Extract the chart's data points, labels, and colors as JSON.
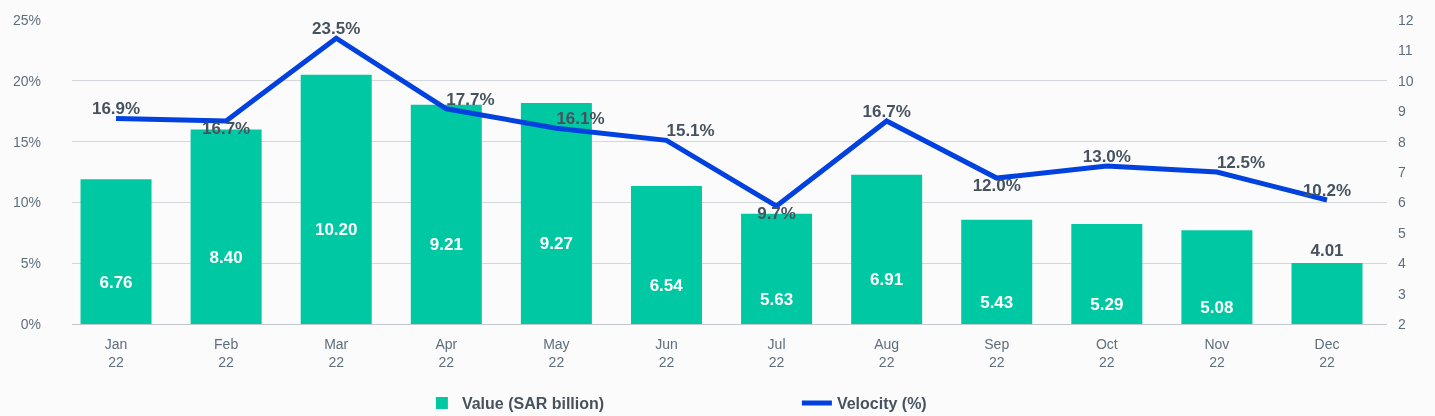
{
  "chart_data": {
    "type": "bar",
    "categories": [
      "Jan\n22",
      "Feb\n22",
      "Mar\n22",
      "Apr\n22",
      "May\n22",
      "Jun\n22",
      "Jul\n22",
      "Aug\n22",
      "Sep\n22",
      "Oct\n22",
      "Nov\n22",
      "Dec\n22"
    ],
    "series": [
      {
        "name": "Value (SAR billion)",
        "axis": "y2",
        "color": "#00c8a3",
        "values": [
          6.76,
          8.4,
          10.2,
          9.21,
          9.27,
          6.54,
          5.63,
          6.91,
          5.43,
          5.29,
          5.08,
          4.01
        ],
        "value_labels": [
          "6.76",
          "8.40",
          "10.20",
          "9.21",
          "9.27",
          "6.54",
          "5.63",
          "6.91",
          "5.43",
          "5.29",
          "5.08",
          "4.01"
        ]
      },
      {
        "name": "Velocity (%)",
        "type": "line",
        "color": "#0041df",
        "values": [
          16.9,
          16.7,
          23.5,
          17.7,
          16.1,
          15.1,
          9.7,
          16.7,
          12.0,
          13.0,
          12.5,
          10.2
        ],
        "value_labels": [
          "16.9%",
          "16.7%",
          "23.5%",
          "17.7%",
          "16.1%",
          "15.1%",
          "9.7%",
          "16.7%",
          "12.0%",
          "13.0%",
          "12.5%",
          "10.2%"
        ]
      }
    ],
    "ylim": [
      0,
      25
    ],
    "yticks": [
      {
        "value": 0,
        "label": "0%"
      },
      {
        "value": 5,
        "label": "5%"
      },
      {
        "value": 10,
        "label": "10%"
      },
      {
        "value": 15,
        "label": "15%"
      },
      {
        "value": 20,
        "label": "20%"
      },
      {
        "value": 25,
        "label": "25%"
      }
    ],
    "y2lim": [
      2,
      12
    ],
    "y2ticks": [
      2,
      3,
      4,
      5,
      6,
      7,
      8,
      9,
      10,
      11,
      12
    ],
    "grid": "y",
    "legend": "bottom"
  }
}
